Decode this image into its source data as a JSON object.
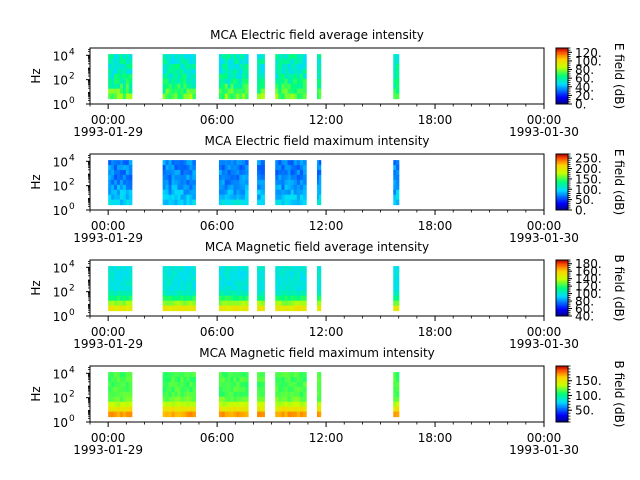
{
  "chart_data": [
    {
      "type": "heatmap",
      "title": "MCA  Electric field average intensity",
      "ylabel": "Hz",
      "y_scale": "log",
      "y_ticks": [
        {
          "base": "10",
          "exp": "0",
          "value": 1
        },
        {
          "base": "10",
          "exp": "2",
          "value": 100
        },
        {
          "base": "10",
          "exp": "4",
          "value": 10000
        }
      ],
      "x_ticks": [
        {
          "time": "00:00",
          "date": "1993-01-29"
        },
        {
          "time": "06:00",
          "date": ""
        },
        {
          "time": "12:00",
          "date": ""
        },
        {
          "time": "18:00",
          "date": ""
        },
        {
          "time": "00:00",
          "date": "1993-01-30"
        }
      ],
      "colorbar_label": "E field (dB)",
      "colorbar_range": [
        0,
        130
      ],
      "colorbar_ticks": [
        "0.",
        "20.",
        "40.",
        "60.",
        "80.",
        "100.",
        "120."
      ],
      "colorbar_tick_values": [
        0,
        20,
        40,
        60,
        80,
        100,
        120
      ],
      "colorbar_minor_step": 5,
      "profile": {
        "top": 55,
        "bottom": 75,
        "knee": 0.35,
        "noise": 10
      },
      "segments": [
        [
          0.0,
          1.3
        ],
        [
          3.0,
          4.8
        ],
        [
          6.1,
          7.7
        ],
        [
          8.2,
          8.6
        ],
        [
          9.2,
          10.9
        ],
        [
          11.5,
          11.7
        ],
        [
          15.7,
          16.0
        ]
      ]
    },
    {
      "type": "heatmap",
      "title": "MCA  Electric field maximum intensity",
      "ylabel": "Hz",
      "y_scale": "log",
      "y_ticks": [
        {
          "base": "10",
          "exp": "0",
          "value": 1
        },
        {
          "base": "10",
          "exp": "2",
          "value": 100
        },
        {
          "base": "10",
          "exp": "4",
          "value": 10000
        }
      ],
      "x_ticks": [
        {
          "time": "00:00",
          "date": "1993-01-29"
        },
        {
          "time": "06:00",
          "date": ""
        },
        {
          "time": "12:00",
          "date": ""
        },
        {
          "time": "18:00",
          "date": ""
        },
        {
          "time": "00:00",
          "date": "1993-01-30"
        }
      ],
      "colorbar_label": "E field (dB)",
      "colorbar_range": [
        0,
        270
      ],
      "colorbar_ticks": [
        "0.",
        "50.",
        "100.",
        "150.",
        "200.",
        "250."
      ],
      "colorbar_tick_values": [
        0,
        50,
        100,
        150,
        200,
        250
      ],
      "colorbar_minor_step": 10,
      "profile": {
        "top": 70,
        "bottom": 95,
        "knee": 0.4,
        "noise": 14
      },
      "segments": [
        [
          0.0,
          1.3
        ],
        [
          3.0,
          4.8
        ],
        [
          6.1,
          7.7
        ],
        [
          8.2,
          8.6
        ],
        [
          9.2,
          10.9
        ],
        [
          11.5,
          11.7
        ],
        [
          15.7,
          16.0
        ]
      ]
    },
    {
      "type": "heatmap",
      "title": "MCA  Magnetic field average intensity",
      "ylabel": "Hz",
      "y_scale": "log",
      "y_ticks": [
        {
          "base": "10",
          "exp": "0",
          "value": 1
        },
        {
          "base": "10",
          "exp": "2",
          "value": 100
        },
        {
          "base": "10",
          "exp": "4",
          "value": 10000
        }
      ],
      "x_ticks": [
        {
          "time": "00:00",
          "date": "1993-01-29"
        },
        {
          "time": "06:00",
          "date": ""
        },
        {
          "time": "12:00",
          "date": ""
        },
        {
          "time": "18:00",
          "date": ""
        },
        {
          "time": "00:00",
          "date": "1993-01-30"
        }
      ],
      "colorbar_label": "B field (dB)",
      "colorbar_range": [
        40,
        190
      ],
      "colorbar_ticks": [
        "40.",
        "60.",
        "80.",
        "100.",
        "120.",
        "140.",
        "160.",
        "180."
      ],
      "colorbar_tick_values": [
        40,
        60,
        80,
        100,
        120,
        140,
        160,
        180
      ],
      "colorbar_minor_step": 5,
      "profile": {
        "top": 98,
        "bottom": 150,
        "knee": 0.55,
        "noise": 5
      },
      "segments": [
        [
          0.0,
          1.3
        ],
        [
          3.0,
          4.8
        ],
        [
          6.1,
          7.7
        ],
        [
          8.2,
          8.6
        ],
        [
          9.2,
          10.9
        ],
        [
          11.5,
          11.7
        ],
        [
          15.7,
          16.0
        ]
      ]
    },
    {
      "type": "heatmap",
      "title": "MCA  Magnetic field maximum intensity",
      "ylabel": "Hz",
      "y_scale": "log",
      "y_ticks": [
        {
          "base": "10",
          "exp": "0",
          "value": 1
        },
        {
          "base": "10",
          "exp": "2",
          "value": 100
        },
        {
          "base": "10",
          "exp": "4",
          "value": 10000
        }
      ],
      "x_ticks": [
        {
          "time": "00:00",
          "date": "1993-01-29"
        },
        {
          "time": "06:00",
          "date": ""
        },
        {
          "time": "12:00",
          "date": ""
        },
        {
          "time": "18:00",
          "date": ""
        },
        {
          "time": "00:00",
          "date": "1993-01-30"
        }
      ],
      "colorbar_label": "B field (dB)",
      "colorbar_range": [
        10,
        200
      ],
      "colorbar_ticks": [
        "50.",
        "100.",
        "150."
      ],
      "colorbar_tick_values": [
        50,
        100,
        150
      ],
      "colorbar_minor_step": 10,
      "profile": {
        "top": 115,
        "bottom": 170,
        "knee": 0.55,
        "noise": 6
      },
      "segments": [
        [
          0.0,
          1.3
        ],
        [
          3.0,
          4.8
        ],
        [
          6.1,
          7.7
        ],
        [
          8.2,
          8.6
        ],
        [
          9.2,
          10.9
        ],
        [
          11.5,
          11.7
        ],
        [
          15.7,
          16.0
        ]
      ]
    }
  ],
  "time_range_hours": [
    -1,
    24
  ],
  "log_y_range": [
    0,
    4.6
  ]
}
